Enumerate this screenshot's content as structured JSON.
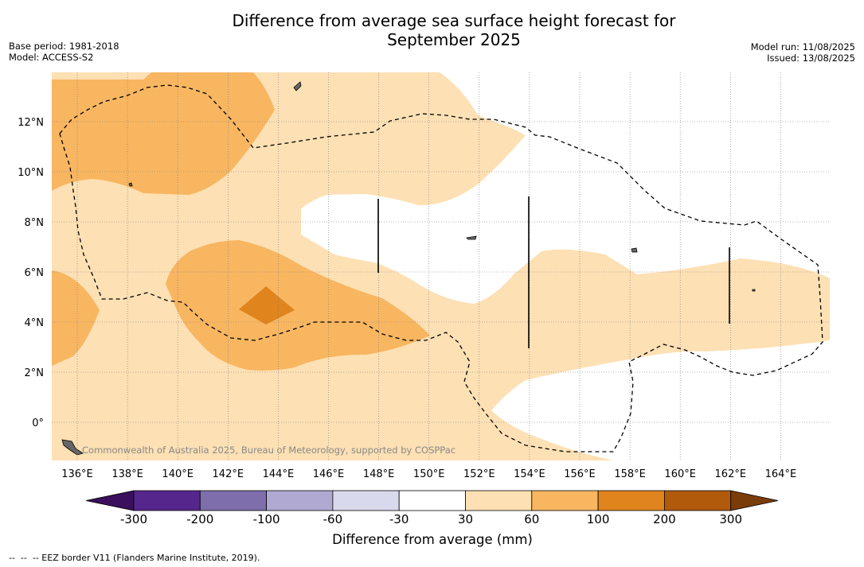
{
  "header": {
    "title_line1": "Difference from average sea surface height forecast for",
    "title_line2": "September 2025",
    "base_period": "Base period: 1981-2018",
    "model": "Model: ACCESS-S2",
    "model_run": "Model run: 11/08/2025",
    "issued": "Issued: 13/08/2025"
  },
  "map": {
    "lon_labels": [
      "136°E",
      "138°E",
      "140°E",
      "142°E",
      "144°E",
      "146°E",
      "148°E",
      "150°E",
      "152°E",
      "154°E",
      "156°E",
      "158°E",
      "160°E",
      "162°E",
      "164°E"
    ],
    "lat_labels": [
      "12°N",
      "10°N",
      "8°N",
      "6°N",
      "4°N",
      "2°N",
      "0°"
    ],
    "credit": "Commonwealth of Australia 2025, Bureau of Meteorology, supported by COSPPac",
    "colors": {
      "c30_60": "#fde0b4",
      "c60_100": "#f8b661",
      "c100_200": "#e0841d",
      "neutral": "#ffffff"
    }
  },
  "colorbar": {
    "ticks": [
      "-300",
      "-200",
      "-100",
      "-60",
      "-30",
      "30",
      "60",
      "100",
      "200",
      "300"
    ],
    "colors": [
      "#3b0f5c",
      "#55278c",
      "#7e6eab",
      "#b0a9d2",
      "#d9d9ee",
      "#ffffff",
      "#fde0b4",
      "#f8b661",
      "#e0841d",
      "#b15a0c",
      "#7a3c08"
    ],
    "title": "Difference from average (mm)"
  },
  "footnote": "--  --  -- EEZ border V11 (Flanders Marine Institute, 2019)."
}
